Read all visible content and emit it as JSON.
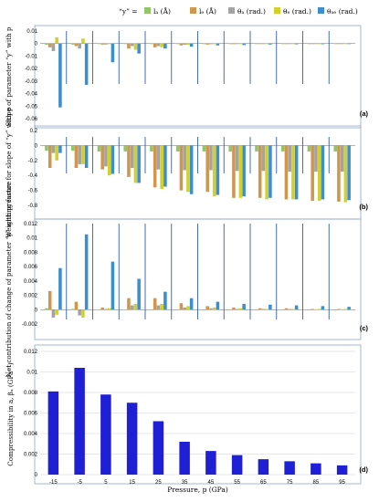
{
  "legend": {
    "prefix": "“y” =",
    "items": [
      {
        "label": "lₐ (Å)",
        "color": "#92c46a"
      },
      {
        "label": "lₑ (Å)",
        "color": "#d0964c"
      },
      {
        "label": "θₐ (rad.)",
        "color": "#a3a3a3"
      },
      {
        "label": "θₑ (rad.)",
        "color": "#d3d027"
      },
      {
        "label": "θₐₑ (rad.)",
        "color": "#3c8fcf"
      }
    ]
  },
  "chart_data": [
    {
      "type": "bar",
      "panel_label": "(a)",
      "ylabel": "Slope of parameter “y” with p",
      "ylim": [
        -0.06,
        0.01
      ],
      "yticks": [
        0.01,
        0,
        -0.01,
        -0.02,
        -0.03,
        -0.04,
        -0.05,
        -0.06
      ],
      "ytick_labels": [
        "0.01",
        "0",
        "-0.01",
        "-0.02",
        "-0.03",
        "-0.04",
        "-0.05",
        "-0.06"
      ],
      "categories": [
        -15,
        -5,
        5,
        15,
        25,
        35,
        45,
        55,
        65,
        75,
        85,
        95
      ],
      "series": [
        {
          "name": "la",
          "values": [
            -0.001,
            -0.0008,
            -0.0003,
            -0.0002,
            -0.0001,
            -0.0001,
            -0.0001,
            -0.0001,
            -0.0001,
            -0.0001,
            -0.0001,
            -0.0001
          ]
        },
        {
          "name": "lb",
          "values": [
            -0.003,
            -0.002,
            -0.0008,
            -0.004,
            -0.003,
            -0.0015,
            -0.0008,
            -0.0005,
            -0.0003,
            -0.0002,
            -0.0002,
            -0.0002
          ]
        },
        {
          "name": "tha",
          "values": [
            -0.006,
            -0.004,
            -0.0008,
            -0.002,
            -0.002,
            -0.001,
            -0.0005,
            -0.0003,
            -0.0002,
            -0.0002,
            -0.0001,
            -0.0001
          ]
        },
        {
          "name": "thb",
          "values": [
            0.005,
            0.004,
            -0.0004,
            -0.005,
            -0.003,
            -0.001,
            -0.0005,
            -0.0003,
            -0.0002,
            -0.0002,
            -0.0001,
            -0.0001
          ]
        },
        {
          "name": "thab",
          "values": [
            -0.051,
            -0.033,
            -0.015,
            -0.008,
            -0.004,
            -0.0025,
            -0.0015,
            -0.0012,
            -0.0008,
            -0.0006,
            -0.0005,
            -0.0004
          ]
        }
      ]
    },
    {
      "type": "bar",
      "panel_label": "(b)",
      "ylabel": "Weighting factor for slope of “y” with p",
      "ylim": [
        -0.8,
        0.2
      ],
      "yticks": [
        0.2,
        0,
        -0.2,
        -0.4,
        -0.6,
        -0.8
      ],
      "ytick_labels": [
        "0.2",
        "0",
        "-0.2",
        "-0.4",
        "-0.6",
        "-0.8"
      ],
      "categories": [
        -15,
        -5,
        5,
        15,
        25,
        35,
        45,
        55,
        65,
        75,
        85,
        95
      ],
      "series": [
        {
          "name": "la",
          "values": [
            -0.07,
            -0.07,
            -0.08,
            -0.08,
            -0.08,
            -0.08,
            -0.08,
            -0.08,
            -0.08,
            -0.08,
            -0.08,
            -0.08
          ]
        },
        {
          "name": "lb",
          "values": [
            -0.3,
            -0.3,
            -0.32,
            -0.42,
            -0.56,
            -0.6,
            -0.62,
            -0.7,
            -0.7,
            -0.72,
            -0.74,
            -0.75
          ]
        },
        {
          "name": "tha",
          "values": [
            -0.1,
            -0.25,
            -0.28,
            -0.3,
            -0.32,
            -0.33,
            -0.33,
            -0.34,
            -0.34,
            -0.35,
            -0.35,
            -0.35
          ]
        },
        {
          "name": "thb",
          "values": [
            -0.2,
            -0.25,
            -0.4,
            -0.5,
            -0.58,
            -0.62,
            -0.68,
            -0.7,
            -0.72,
            -0.72,
            -0.74,
            -0.76
          ]
        },
        {
          "name": "thab",
          "values": [
            -0.1,
            -0.3,
            -0.38,
            -0.5,
            -0.55,
            -0.65,
            -0.66,
            -0.68,
            -0.7,
            -0.72,
            -0.72,
            -0.73
          ]
        }
      ]
    },
    {
      "type": "bar",
      "panel_label": "(c)",
      "ylabel": "Net contribution of change of parameter “y” with pressure",
      "ylim": [
        -0.002,
        0.012
      ],
      "yticks": [
        0.012,
        0.01,
        0.008,
        0.006,
        0.004,
        0.002,
        0,
        -0.002
      ],
      "ytick_labels": [
        "0.012",
        "0.01",
        "0.008",
        "0.006",
        "0.004",
        "0.002",
        "0",
        "-0.002"
      ],
      "categories": [
        -15,
        -5,
        5,
        15,
        25,
        35,
        45,
        55,
        65,
        75,
        85,
        95
      ],
      "series": [
        {
          "name": "la",
          "values": [
            0.0002,
            0.0001,
            3e-05,
            2e-05,
            1e-05,
            1e-05,
            1e-05,
            1e-05,
            1e-05,
            1e-05,
            1e-05,
            1e-05
          ]
        },
        {
          "name": "lb",
          "values": [
            0.0026,
            0.0011,
            0.0003,
            0.0016,
            0.0016,
            0.0009,
            0.0005,
            0.0003,
            0.0002,
            0.0002,
            0.0001,
            0.0001
          ]
        },
        {
          "name": "tha",
          "values": [
            -0.0011,
            -0.0008,
            0.0001,
            0.0006,
            0.0006,
            0.0003,
            0.0002,
            0.0001,
            0.0001,
            0.0001,
            5e-05,
            5e-05
          ]
        },
        {
          "name": "thb",
          "values": [
            -0.0007,
            -0.0011,
            0.0002,
            0.0008,
            0.0008,
            0.0005,
            0.0003,
            0.0002,
            0.0001,
            0.0001,
            0.0001,
            0.0001
          ]
        },
        {
          "name": "thab",
          "values": [
            0.0058,
            0.0105,
            0.0067,
            0.0043,
            0.0025,
            0.0016,
            0.0011,
            0.0008,
            0.0007,
            0.0006,
            0.0005,
            0.0004
          ]
        }
      ]
    },
    {
      "type": "bar",
      "panel_label": "(d)",
      "ylabel": "Compressibility in a, βₐ (GPa⁻¹)",
      "xlabel": "Pressure, p (GPa)",
      "ylim": [
        0,
        0.012
      ],
      "yticks": [
        0.012,
        0.01,
        0.008,
        0.006,
        0.004,
        0.002,
        0
      ],
      "ytick_labels": [
        "0.012",
        "0.01",
        "0.008",
        "0.006",
        "0.004",
        "0.002",
        "0"
      ],
      "categories": [
        -15,
        -5,
        5,
        15,
        25,
        35,
        45,
        55,
        65,
        75,
        85,
        95
      ],
      "tick_labels": [
        "-15",
        "-5",
        "5",
        "15",
        "25",
        "35",
        "45",
        "55",
        "65",
        "75",
        "85",
        "95"
      ],
      "values": [
        0.0081,
        0.0104,
        0.0078,
        0.007,
        0.0052,
        0.0032,
        0.0023,
        0.0019,
        0.0015,
        0.0013,
        0.0011,
        0.0009
      ],
      "color": "#1f1fd6"
    }
  ]
}
